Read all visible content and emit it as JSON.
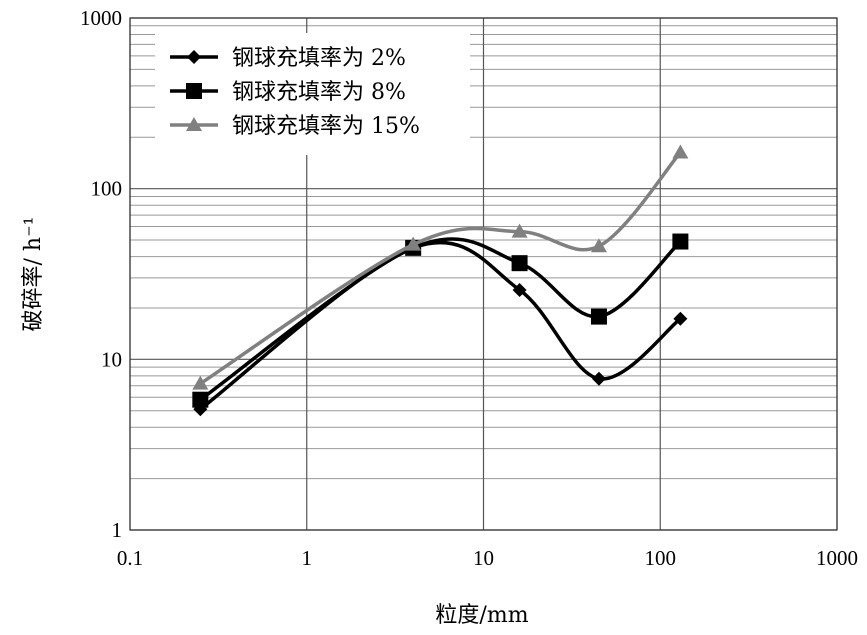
{
  "chart_data": {
    "type": "line",
    "title": "",
    "xlabel": "粒度/mm",
    "ylabel": "破碎率/ h⁻¹",
    "x_scale": "log",
    "y_scale": "log",
    "xlim": [
      0.1,
      1000
    ],
    "ylim": [
      1,
      1000
    ],
    "x_ticks": [
      "0.1",
      "1",
      "10",
      "100",
      "1000"
    ],
    "y_ticks": [
      "1",
      "10",
      "100",
      "1000"
    ],
    "grid": true,
    "legend_position": "top-left",
    "x": [
      0.25,
      4,
      16,
      45,
      130
    ],
    "series": [
      {
        "name": "钢球充填率为 2%",
        "marker": "diamond",
        "color": "#000000",
        "values": [
          5.1,
          45,
          25.5,
          7.7,
          17.3
        ]
      },
      {
        "name": "钢球充填率为 8%",
        "marker": "square",
        "color": "#000000",
        "values": [
          5.8,
          45,
          36.6,
          17.8,
          49
        ]
      },
      {
        "name": "钢球充填率为 15%",
        "marker": "triangle",
        "color": "#808080",
        "values": [
          7.2,
          47,
          56,
          46,
          163
        ]
      }
    ]
  }
}
